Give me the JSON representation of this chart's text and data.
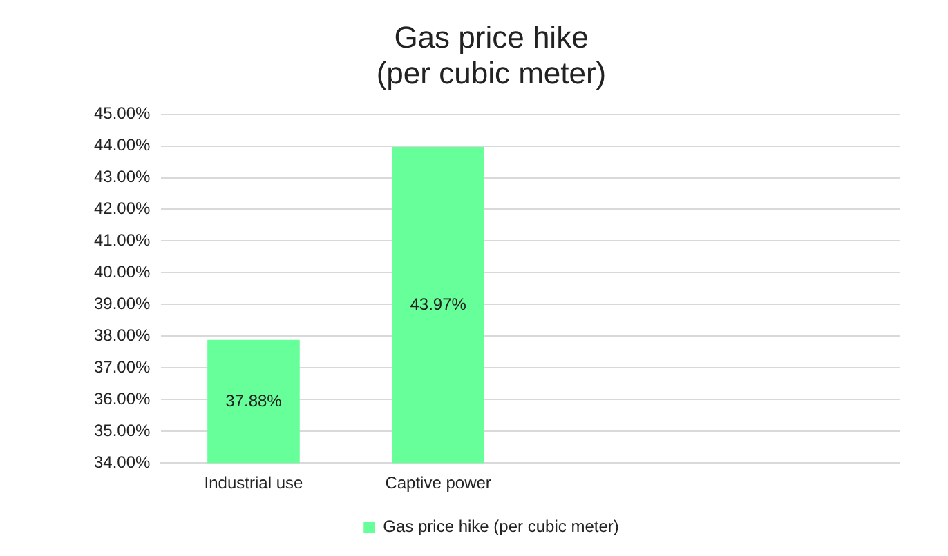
{
  "chart_data": {
    "type": "bar",
    "title": "Gas price hike\n(per cubic meter)",
    "categories": [
      "Industrial use",
      "Captive power",
      null,
      null
    ],
    "series": [
      {
        "name": "Gas price hike (per cubic meter)",
        "color": "#66ff99",
        "values": [
          37.88,
          43.97,
          null,
          null
        ]
      }
    ],
    "ylim": [
      34,
      45
    ],
    "yticks": [
      {
        "value": 34,
        "label": "34.00%"
      },
      {
        "value": 35,
        "label": "35.00%"
      },
      {
        "value": 36,
        "label": "36.00%"
      },
      {
        "value": 37,
        "label": "37.00%"
      },
      {
        "value": 38,
        "label": "38.00%"
      },
      {
        "value": 39,
        "label": "39.00%"
      },
      {
        "value": 40,
        "label": "40.00%"
      },
      {
        "value": 41,
        "label": "41.00%"
      },
      {
        "value": 42,
        "label": "42.00%"
      },
      {
        "value": 43,
        "label": "43.00%"
      },
      {
        "value": 44,
        "label": "44.00%"
      },
      {
        "value": 45,
        "label": "45.00%"
      }
    ],
    "value_labels": [
      "37.88%",
      "43.97%",
      null,
      null
    ],
    "grid": "y",
    "legend": "bottom"
  }
}
